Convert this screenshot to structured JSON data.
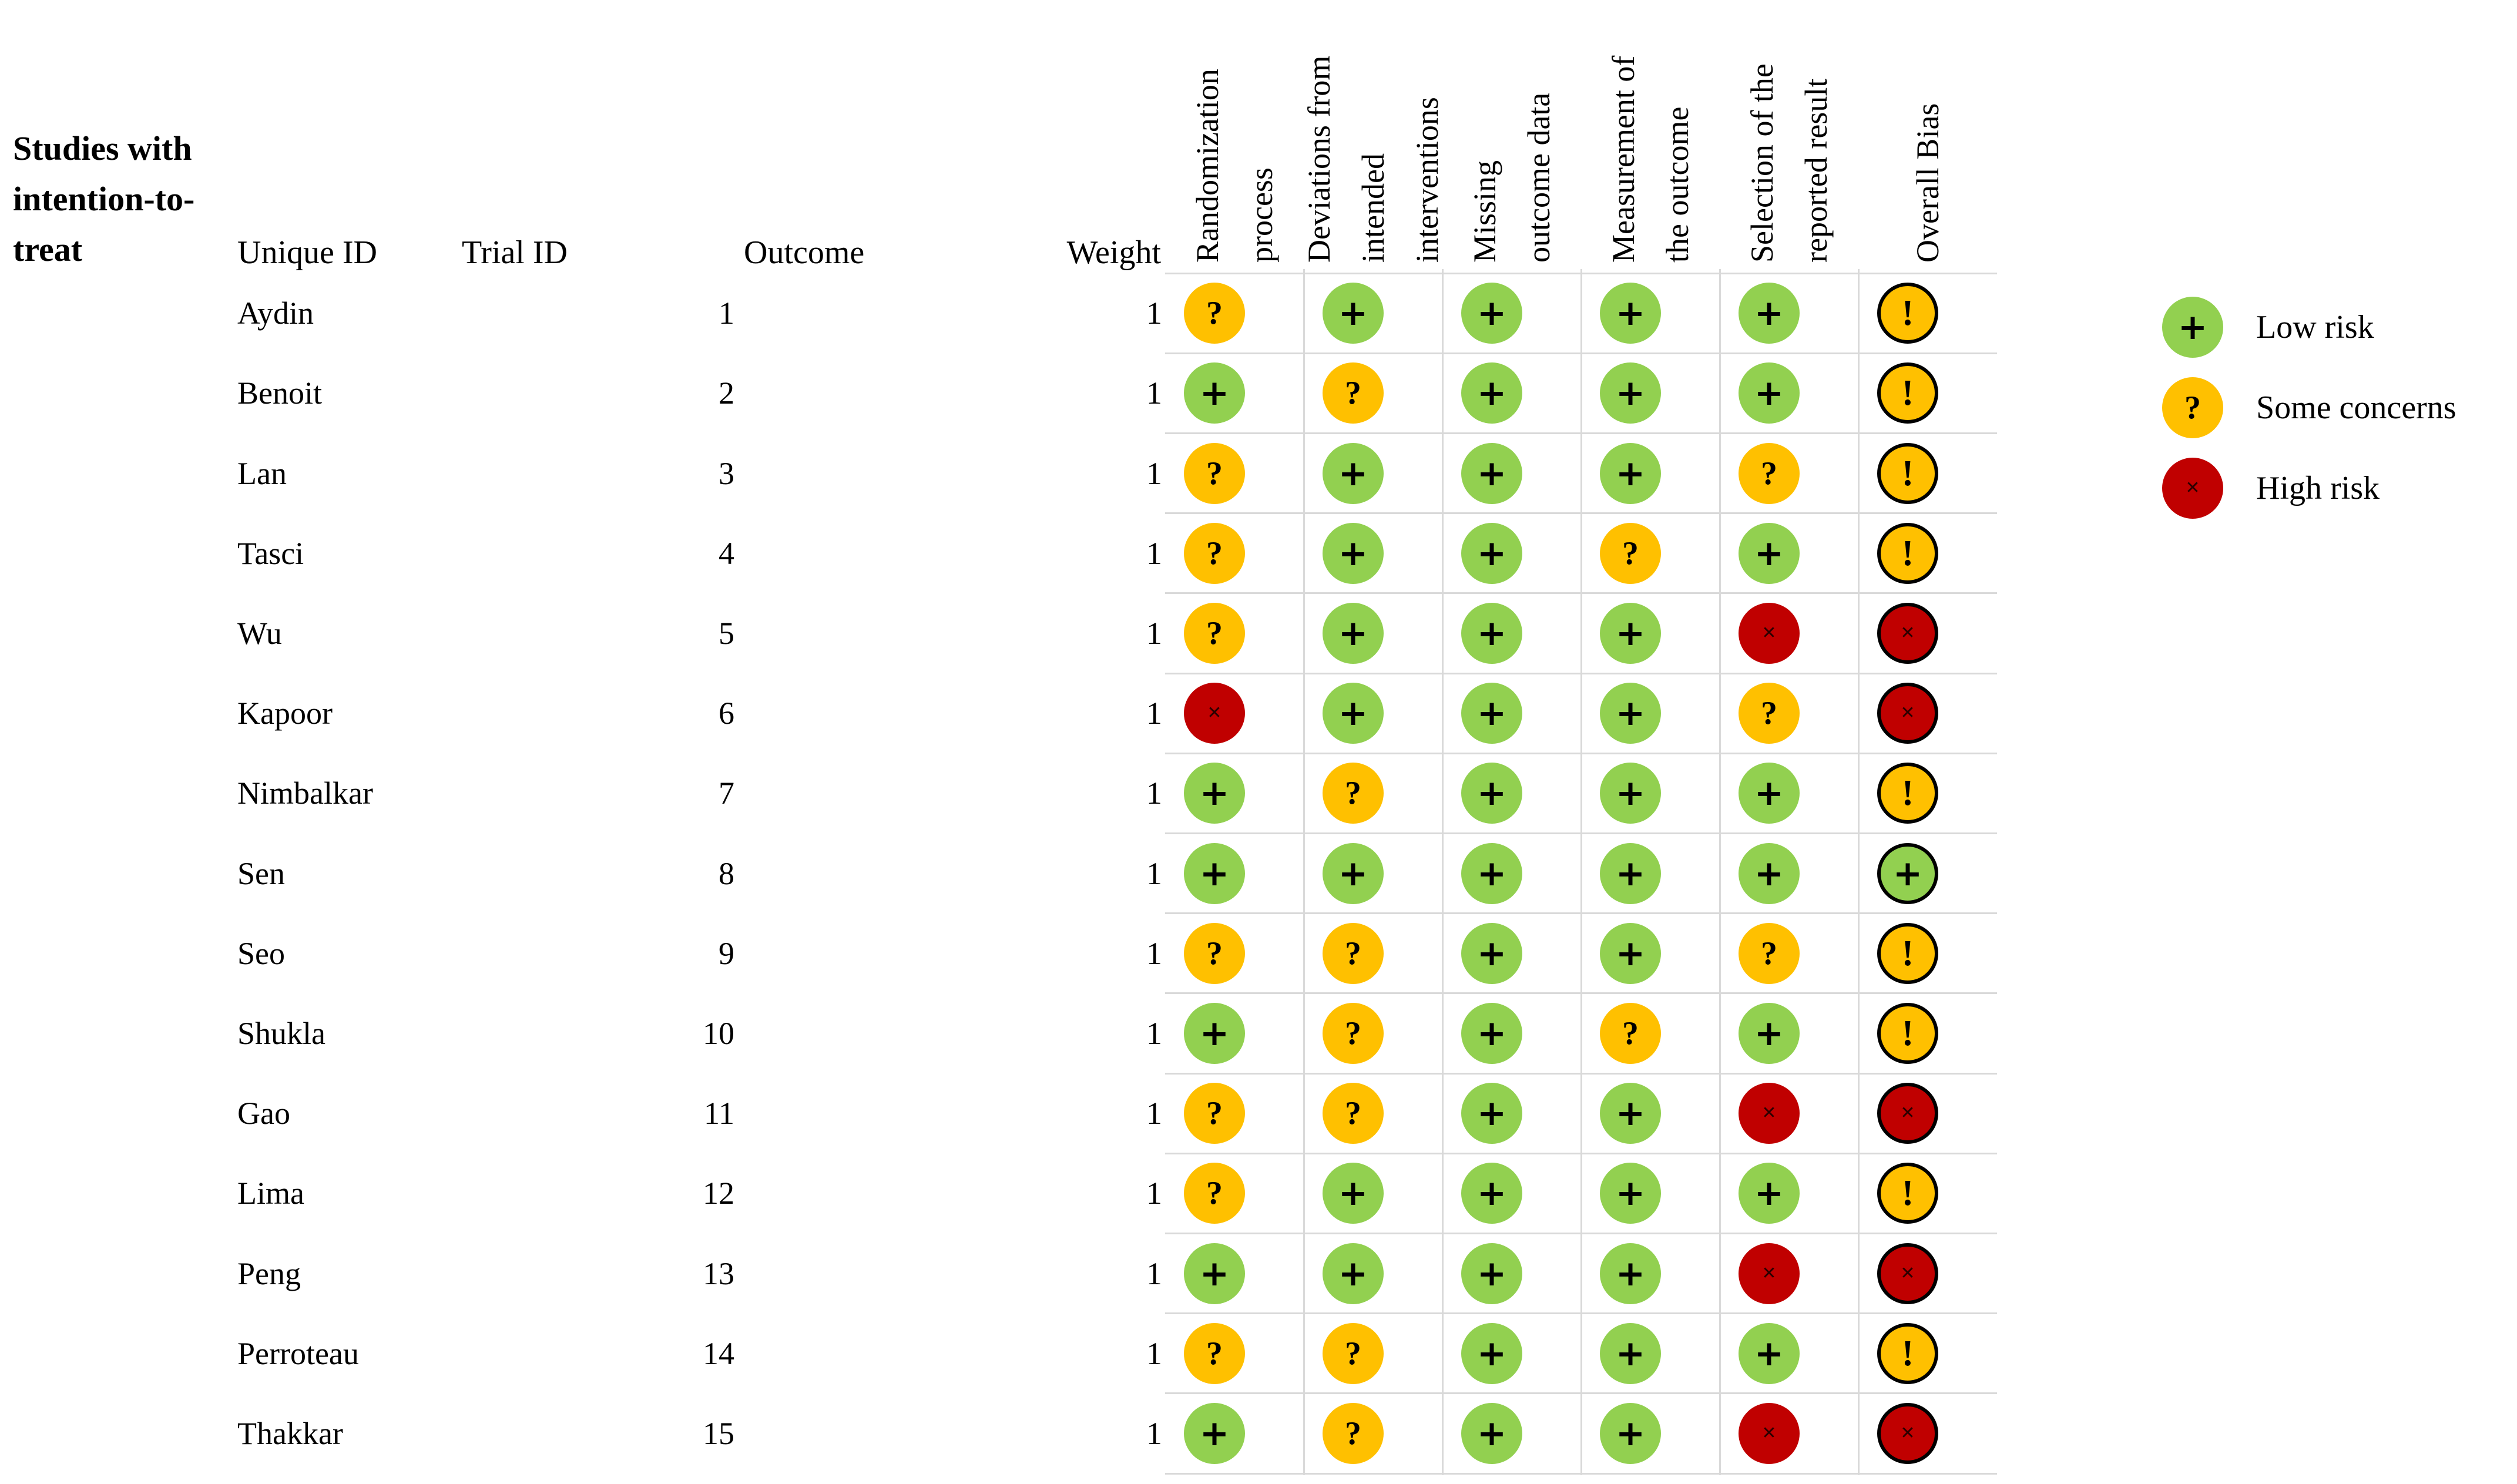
{
  "chart_data": {
    "type": "table",
    "variant": "risk-of-bias-traffic-light",
    "tool": "RoB2",
    "title": "Studies with intention-to-treat",
    "title_lines": [
      "Studies with",
      "intention-to-",
      "treat"
    ],
    "columns": {
      "unique_id": "Unique ID",
      "trial_id": "Trial ID",
      "outcome": "Outcome",
      "weight": "Weight"
    },
    "domain_headers": [
      {
        "label": "Randomization process",
        "lines": [
          "Randomization",
          "process"
        ]
      },
      {
        "label": "Deviations from intended interventions",
        "lines": [
          "Deviations from",
          "intended",
          "interventions"
        ]
      },
      {
        "label": "Missing outcome data",
        "lines": [
          "Missing",
          "outcome data"
        ]
      },
      {
        "label": "Measurement of the outcome",
        "lines": [
          "Measurement of",
          "the outcome"
        ]
      },
      {
        "label": "Selection of the reported result",
        "lines": [
          "Selection of the",
          "reported result"
        ]
      },
      {
        "label": "Overall Bias",
        "lines": [
          "Overall Bias"
        ]
      }
    ],
    "legend": [
      {
        "key": "low",
        "symbol": "+",
        "label": "Low risk",
        "color": "#92D050"
      },
      {
        "key": "some",
        "symbol": "?",
        "label": "Some concerns",
        "color": "#FFC000"
      },
      {
        "key": "high",
        "symbol": "✕",
        "label": "High risk",
        "color": "#C00000"
      }
    ],
    "symbols": {
      "domain": {
        "low": "+",
        "some": "?",
        "high": "✕"
      },
      "overall": {
        "low": "+",
        "some": "!",
        "high": "✕"
      }
    },
    "colors": {
      "low": "#92D050",
      "some": "#FFC000",
      "high": "#C00000",
      "overall_ring": "#000000",
      "grid_line": "#D9D9D9",
      "text": "#000000"
    },
    "studies": [
      {
        "unique_id": "Aydin",
        "outcome": 1,
        "weight": 1,
        "ratings": [
          "some",
          "low",
          "low",
          "low",
          "low"
        ],
        "overall": "some"
      },
      {
        "unique_id": "Benoit",
        "outcome": 2,
        "weight": 1,
        "ratings": [
          "low",
          "some",
          "low",
          "low",
          "low"
        ],
        "overall": "some"
      },
      {
        "unique_id": "Lan",
        "outcome": 3,
        "weight": 1,
        "ratings": [
          "some",
          "low",
          "low",
          "low",
          "some"
        ],
        "overall": "some"
      },
      {
        "unique_id": "Tasci",
        "outcome": 4,
        "weight": 1,
        "ratings": [
          "some",
          "low",
          "low",
          "some",
          "low"
        ],
        "overall": "some"
      },
      {
        "unique_id": "Wu",
        "outcome": 5,
        "weight": 1,
        "ratings": [
          "some",
          "low",
          "low",
          "low",
          "high"
        ],
        "overall": "high"
      },
      {
        "unique_id": "Kapoor",
        "outcome": 6,
        "weight": 1,
        "ratings": [
          "high",
          "low",
          "low",
          "low",
          "some"
        ],
        "overall": "high"
      },
      {
        "unique_id": "Nimbalkar",
        "outcome": 7,
        "weight": 1,
        "ratings": [
          "low",
          "some",
          "low",
          "low",
          "low"
        ],
        "overall": "some"
      },
      {
        "unique_id": "Sen",
        "outcome": 8,
        "weight": 1,
        "ratings": [
          "low",
          "low",
          "low",
          "low",
          "low"
        ],
        "overall": "low"
      },
      {
        "unique_id": "Seo",
        "outcome": 9,
        "weight": 1,
        "ratings": [
          "some",
          "some",
          "low",
          "low",
          "some"
        ],
        "overall": "some"
      },
      {
        "unique_id": "Shukla",
        "outcome": 10,
        "weight": 1,
        "ratings": [
          "low",
          "some",
          "low",
          "some",
          "low"
        ],
        "overall": "some"
      },
      {
        "unique_id": "Gao",
        "outcome": 11,
        "weight": 1,
        "ratings": [
          "some",
          "some",
          "low",
          "low",
          "high"
        ],
        "overall": "high"
      },
      {
        "unique_id": "Lima",
        "outcome": 12,
        "weight": 1,
        "ratings": [
          "some",
          "low",
          "low",
          "low",
          "low"
        ],
        "overall": "some"
      },
      {
        "unique_id": "Peng",
        "outcome": 13,
        "weight": 1,
        "ratings": [
          "low",
          "low",
          "low",
          "low",
          "high"
        ],
        "overall": "high"
      },
      {
        "unique_id": "Perroteau",
        "outcome": 14,
        "weight": 1,
        "ratings": [
          "some",
          "some",
          "low",
          "low",
          "low"
        ],
        "overall": "some"
      },
      {
        "unique_id": "Thakkar",
        "outcome": 15,
        "weight": 1,
        "ratings": [
          "low",
          "some",
          "low",
          "low",
          "high"
        ],
        "overall": "high"
      }
    ]
  }
}
